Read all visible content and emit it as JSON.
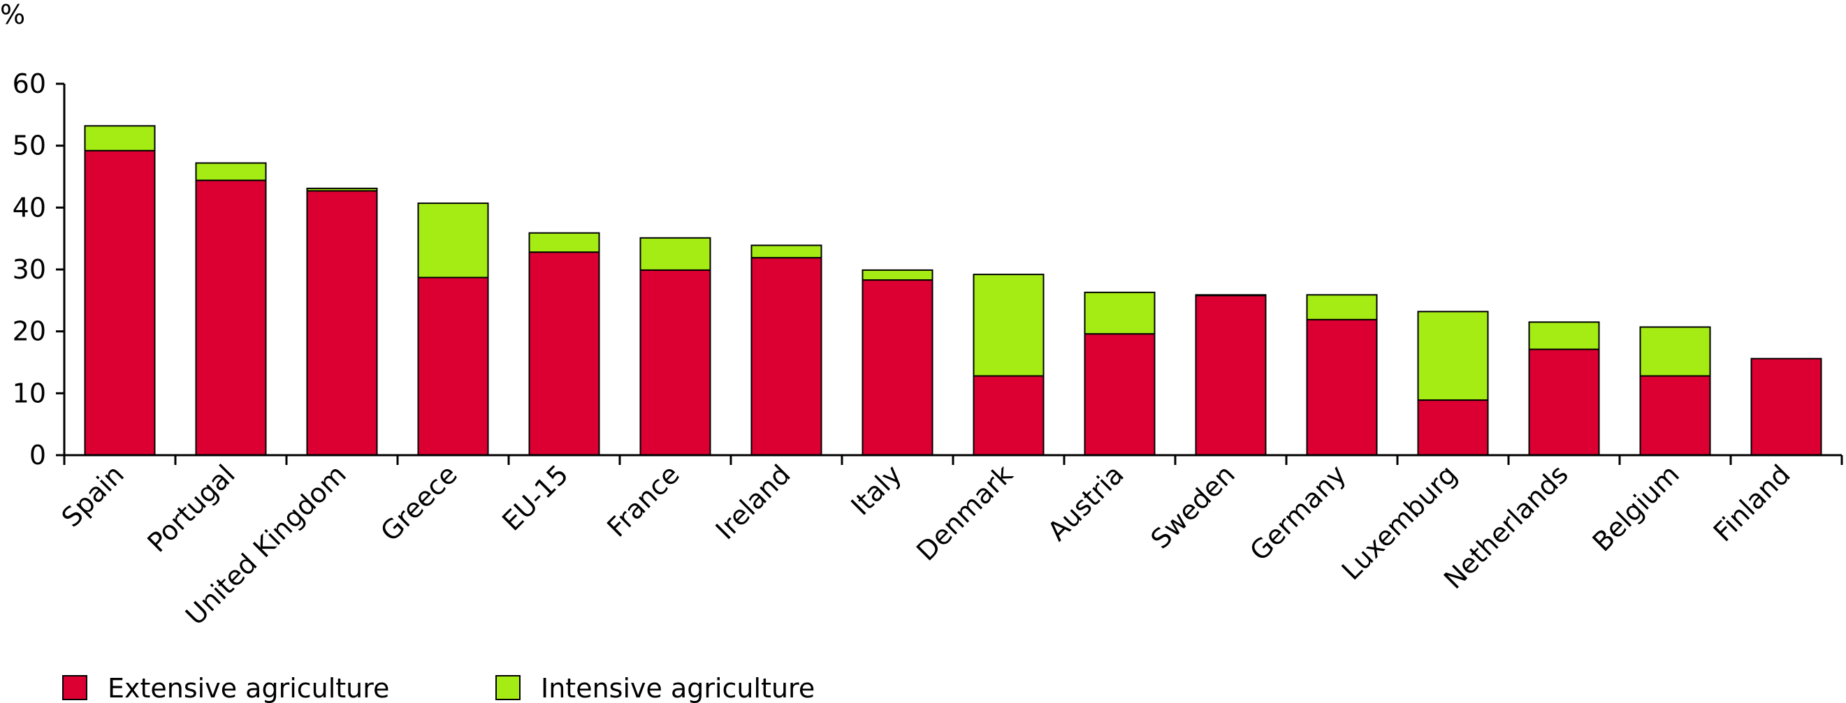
{
  "chart_data": {
    "type": "bar",
    "stacked": true,
    "ylabel": "%",
    "ylim": [
      0,
      60
    ],
    "yticks": [
      0,
      10,
      20,
      30,
      40,
      50,
      60
    ],
    "grid": false,
    "legend_position": "bottom-left",
    "categories": [
      "Spain",
      "Portugal",
      "United Kingdom",
      "Greece",
      "EU-15",
      "France",
      "Ireland",
      "Italy",
      "Denmark",
      "Austria",
      "Sweden",
      "Germany",
      "Luxemburg",
      "Netherlands",
      "Belgium",
      "Finland"
    ],
    "series": [
      {
        "name": "Extensive agriculture",
        "color": "#dc0032",
        "values": [
          49.2,
          44.4,
          42.7,
          28.7,
          32.8,
          29.9,
          31.9,
          28.3,
          12.8,
          19.6,
          25.8,
          21.9,
          8.9,
          17.1,
          12.8,
          15.6
        ]
      },
      {
        "name": "Intensive agriculture",
        "color": "#a5eb14",
        "values": [
          4.0,
          2.8,
          0.4,
          12.0,
          3.1,
          5.2,
          2.0,
          1.6,
          16.4,
          6.7,
          0.1,
          4.0,
          14.3,
          4.4,
          7.9,
          0.0
        ]
      }
    ]
  }
}
